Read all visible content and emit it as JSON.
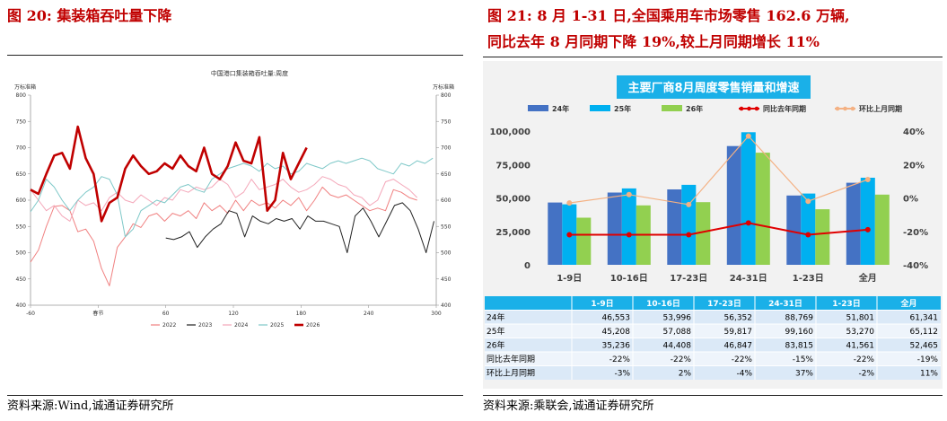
{
  "left": {
    "figure_title": "图 20:  集装箱吞吐量下降",
    "source": "资料来源:Wind,诚通证券研究所"
  },
  "right": {
    "figure_title_line1": "图 21:  8 月 1-31 日,全国乘用车市场零售 162.6 万辆,",
    "figure_title_line2": "同比去年 8 月同期下降 19%,较上月同期增长 11%",
    "source": "资料来源:乘联会,诚通证券研究所"
  },
  "colors": {
    "title_red": "#c00000",
    "s2022": "#f08080",
    "s2023": "#222222",
    "s2024": "#f4a7b9",
    "s2025": "#7ec8c8",
    "s2026": "#c00000",
    "bar24": "#4472c4",
    "bar25": "#00b0f0",
    "bar26": "#92d050",
    "yoy": "#e00000",
    "mom": "#f4b183",
    "banner": "#1ab0e8"
  },
  "chart_data": [
    {
      "type": "line",
      "title": "中国港口集装箱吞吐量:周度",
      "ylabel": "万标准箱",
      "ylabel_right": "万标准箱",
      "xlim": [
        -60,
        300
      ],
      "x_ticks": [
        -60,
        0,
        60,
        120,
        180,
        240,
        300
      ],
      "x_tick_labels": [
        "-60",
        "春节",
        "60",
        "120",
        "180",
        "240",
        "300"
      ],
      "ylim": [
        400,
        800
      ],
      "y_ticks": [
        400,
        450,
        500,
        550,
        600,
        650,
        700,
        750,
        800
      ],
      "grid": false,
      "legend_position": "bottom",
      "series": [
        {
          "name": "2022",
          "x": [
            -60,
            -53,
            -46,
            -39,
            -32,
            -25,
            -18,
            -11,
            -4,
            3,
            10,
            17,
            24,
            31,
            38,
            45,
            52,
            59,
            66,
            73,
            80,
            87,
            94,
            101,
            108,
            115,
            122,
            129,
            136,
            143,
            150,
            157,
            164,
            171,
            178,
            185,
            192,
            199,
            206,
            213,
            220,
            227,
            234,
            241,
            248,
            255,
            262,
            269,
            276,
            283
          ],
          "y": [
            482,
            505,
            550,
            588,
            590,
            580,
            540,
            545,
            522,
            470,
            437,
            510,
            530,
            555,
            548,
            570,
            575,
            560,
            575,
            570,
            580,
            565,
            595,
            580,
            590,
            575,
            600,
            580,
            600,
            590,
            595,
            585,
            600,
            590,
            605,
            580,
            600,
            625,
            610,
            605,
            610,
            600,
            590,
            580,
            585,
            580,
            620,
            615,
            605,
            600
          ]
        },
        {
          "name": "2023",
          "x": [
            60,
            67,
            74,
            81,
            88,
            95,
            102,
            109,
            116,
            123,
            130,
            137,
            144,
            151,
            158,
            165,
            172,
            179,
            186,
            193,
            200,
            207,
            214,
            221,
            228,
            235,
            242,
            249,
            256,
            263,
            270,
            277,
            284,
            291,
            298
          ],
          "y": [
            528,
            525,
            530,
            540,
            510,
            530,
            545,
            555,
            580,
            575,
            530,
            570,
            560,
            555,
            565,
            560,
            565,
            545,
            570,
            560,
            560,
            555,
            550,
            500,
            570,
            585,
            560,
            530,
            560,
            590,
            595,
            580,
            545,
            500,
            560
          ]
        },
        {
          "name": "2024",
          "x": [
            -60,
            -53,
            -46,
            -39,
            -32,
            -25,
            -18,
            -11,
            -4,
            3,
            10,
            17,
            24,
            31,
            38,
            45,
            52,
            59,
            66,
            73,
            80,
            87,
            94,
            101,
            108,
            115,
            122,
            129,
            136,
            143,
            150,
            157,
            164,
            171,
            178,
            185,
            192,
            199,
            206,
            213,
            220,
            227,
            234,
            241,
            248,
            255,
            262,
            269,
            276,
            283
          ],
          "y": [
            620,
            600,
            580,
            590,
            570,
            560,
            600,
            590,
            595,
            580,
            605,
            615,
            600,
            595,
            610,
            600,
            590,
            605,
            600,
            620,
            615,
            625,
            620,
            625,
            640,
            630,
            605,
            615,
            640,
            620,
            625,
            630,
            640,
            625,
            615,
            620,
            630,
            645,
            640,
            630,
            625,
            610,
            605,
            590,
            600,
            635,
            640,
            630,
            620,
            605
          ]
        },
        {
          "name": "2025",
          "x": [
            -60,
            -53,
            -46,
            -39,
            -32,
            -25,
            -18,
            -11,
            -4,
            3,
            10,
            17,
            24,
            31,
            38,
            45,
            52,
            59,
            66,
            73,
            80,
            87,
            94,
            101,
            108,
            115,
            122,
            129,
            136,
            143,
            150,
            157,
            164,
            171,
            178,
            185,
            192,
            199,
            206,
            213,
            220,
            227,
            234,
            241,
            248,
            255,
            262,
            269,
            276,
            283,
            290,
            297
          ],
          "y": [
            578,
            600,
            640,
            625,
            600,
            580,
            600,
            615,
            625,
            645,
            640,
            610,
            530,
            545,
            580,
            590,
            600,
            595,
            610,
            625,
            630,
            620,
            615,
            640,
            650,
            660,
            665,
            670,
            665,
            655,
            670,
            660,
            665,
            650,
            655,
            670,
            665,
            660,
            670,
            675,
            670,
            675,
            680,
            675,
            660,
            655,
            650,
            670,
            665,
            675,
            670,
            680
          ]
        },
        {
          "name": "2026",
          "x": [
            -60,
            -53,
            -46,
            -39,
            -32,
            -25,
            -18,
            -11,
            -4,
            3,
            10,
            17,
            24,
            31,
            38,
            45,
            52,
            59,
            66,
            73,
            80,
            87,
            94,
            101,
            108,
            115,
            122,
            129,
            136,
            143,
            150,
            157,
            164,
            171,
            178,
            185
          ],
          "y": [
            620,
            612,
            650,
            685,
            690,
            660,
            740,
            680,
            650,
            560,
            595,
            605,
            660,
            685,
            665,
            650,
            655,
            670,
            660,
            685,
            665,
            655,
            700,
            650,
            640,
            665,
            710,
            675,
            670,
            720,
            580,
            600,
            690,
            640,
            670,
            700
          ]
        }
      ]
    },
    {
      "type": "bar",
      "title": "主要厂商8月周度零售销量和增速",
      "categories": [
        "1-9日",
        "10-16日",
        "17-23日",
        "24-31日",
        "1-23日",
        "全月"
      ],
      "ylim": [
        0,
        100000
      ],
      "y_ticks": [
        "0",
        "25,000",
        "50,000",
        "75,000",
        "100,000"
      ],
      "y2lim": [
        -40,
        40
      ],
      "y2_ticks": [
        "-40%",
        "-20%",
        "0%",
        "20%",
        "40%"
      ],
      "legend_position": "top",
      "series": [
        {
          "name": "24年",
          "type": "bar",
          "values": [
            46553,
            53996,
            56352,
            88769,
            51801,
            61341
          ],
          "labels": [
            "46,553",
            "53,996",
            "56,352",
            "88,769",
            "51,801",
            "61,341"
          ]
        },
        {
          "name": "25年",
          "type": "bar",
          "values": [
            45208,
            57088,
            59817,
            99160,
            53270,
            65112
          ],
          "labels": [
            "45,208",
            "57,088",
            "59,817",
            "99,160",
            "53,270",
            "65,112"
          ]
        },
        {
          "name": "26年",
          "type": "bar",
          "values": [
            35236,
            44408,
            46847,
            83815,
            41561,
            52465
          ],
          "labels": [
            "35,236",
            "44,408",
            "46,847",
            "83,815",
            "41,561",
            "52,465"
          ]
        },
        {
          "name": "同比去年同期",
          "type": "line",
          "axis": "right",
          "values": [
            -22,
            -22,
            -22,
            -15,
            -22,
            -19
          ],
          "labels": [
            "-22%",
            "-22%",
            "-22%",
            "-15%",
            "-22%",
            "-19%"
          ]
        },
        {
          "name": "环比上月同期",
          "type": "line",
          "axis": "right",
          "values": [
            -3,
            2,
            -4,
            37,
            -2,
            11
          ],
          "labels": [
            "-3%",
            "2%",
            "-4%",
            "37%",
            "-2%",
            "11%"
          ]
        }
      ]
    }
  ]
}
